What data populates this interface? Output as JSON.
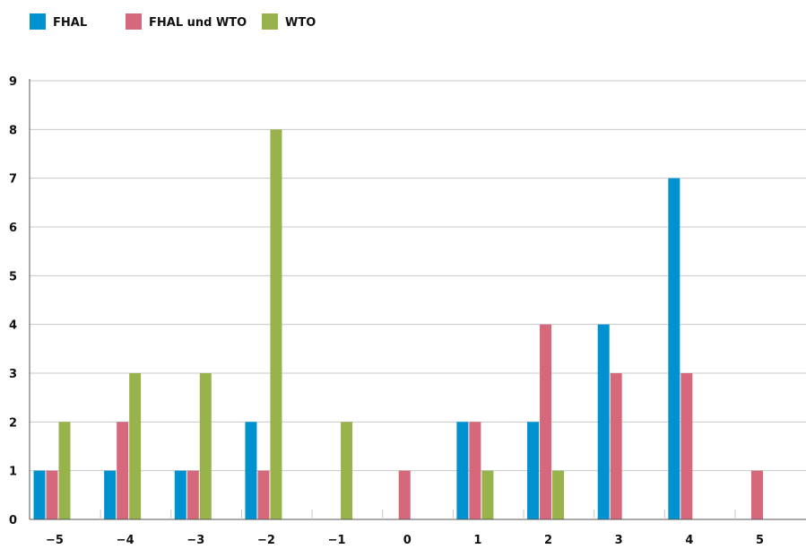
{
  "chart_data": {
    "type": "bar",
    "title": "",
    "xlabel": "",
    "ylabel": "",
    "categories": [
      "−5",
      "−4",
      "−3",
      "−2",
      "−1",
      "0",
      "1",
      "2",
      "3",
      "4",
      "5"
    ],
    "series": [
      {
        "name": "FHAL",
        "color": "#0091d0",
        "values": [
          1,
          1,
          1,
          2,
          0,
          0,
          2,
          2,
          4,
          7,
          0
        ]
      },
      {
        "name": "FHAL und WTO",
        "color": "#d5687a",
        "values": [
          1,
          2,
          1,
          1,
          0,
          1,
          2,
          4,
          3,
          3,
          1
        ]
      },
      {
        "name": "WTO",
        "color": "#98b24c",
        "values": [
          2,
          3,
          3,
          8,
          2,
          0,
          1,
          1,
          0,
          0,
          0
        ]
      }
    ],
    "ylim": [
      0,
      9
    ],
    "yticks": [
      0,
      1,
      2,
      3,
      4,
      5,
      6,
      7,
      8,
      9
    ],
    "grid": true,
    "legend": "top-left"
  }
}
